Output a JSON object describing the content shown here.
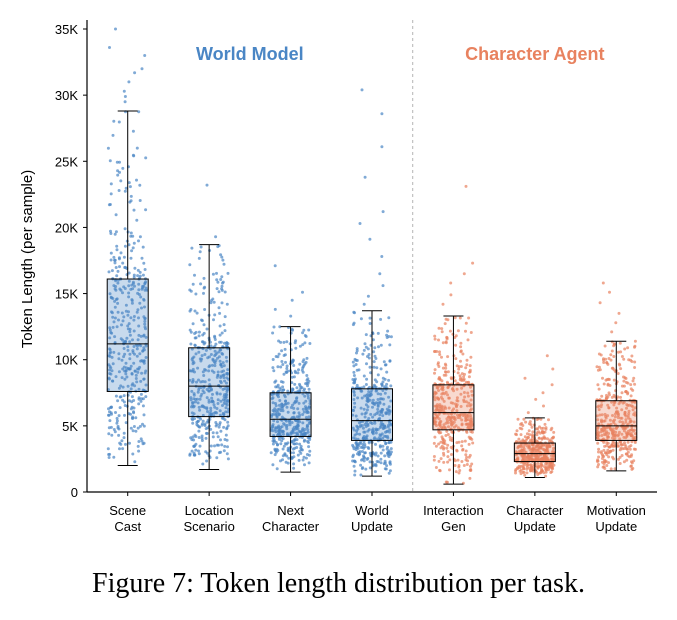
{
  "caption": "Figure 7: Token length distribution per task.",
  "chart_data": {
    "type": "box",
    "ylabel": "Token Length (per sample)",
    "ylim": [
      0,
      35000
    ],
    "yticks": [
      0,
      5000,
      10000,
      15000,
      20000,
      25000,
      30000,
      35000
    ],
    "ytick_labels": [
      "0",
      "5K",
      "10K",
      "15K",
      "20K",
      "25K",
      "30K",
      "35K"
    ],
    "groups": [
      {
        "name": "World Model",
        "color": "#4a86c5",
        "categories": [
          0,
          1,
          2,
          3
        ]
      },
      {
        "name": "Character Agent",
        "color": "#e8825f",
        "categories": [
          4,
          5,
          6
        ]
      }
    ],
    "categories": [
      {
        "label": [
          "Scene",
          "Cast"
        ],
        "group": 0,
        "whisker_low": 2000,
        "q1": 7600,
        "median": 11200,
        "q3": 16100,
        "whisker_high": 28800,
        "outliers": [
          35000,
          33600,
          33000,
          32000,
          31700,
          31000,
          30300,
          29900,
          29500
        ]
      },
      {
        "label": [
          "Location",
          "Scenario"
        ],
        "group": 0,
        "whisker_low": 1700,
        "q1": 5700,
        "median": 8000,
        "q3": 10900,
        "whisker_high": 18700,
        "outliers": [
          23200,
          19300
        ]
      },
      {
        "label": [
          "Next",
          "Character"
        ],
        "group": 0,
        "whisker_low": 1500,
        "q1": 4200,
        "median": 5500,
        "q3": 7500,
        "whisker_high": 12500,
        "outliers": [
          17100,
          15100,
          14500,
          13800,
          13300
        ]
      },
      {
        "label": [
          "World",
          "Update"
        ],
        "group": 0,
        "whisker_low": 1200,
        "q1": 3900,
        "median": 5400,
        "q3": 7800,
        "whisker_high": 13700,
        "outliers": [
          30400,
          28600,
          26100,
          23800,
          21200,
          20300,
          19100,
          17800,
          16500,
          15600,
          14800,
          14200
        ]
      },
      {
        "label": [
          "Interaction",
          "Gen"
        ],
        "group": 1,
        "whisker_low": 600,
        "q1": 4700,
        "median": 6000,
        "q3": 8100,
        "whisker_high": 13300,
        "outliers": [
          23100,
          17300,
          16500,
          15800,
          14900,
          14200
        ]
      },
      {
        "label": [
          "Character",
          "Update"
        ],
        "group": 1,
        "whisker_low": 1100,
        "q1": 2300,
        "median": 2900,
        "q3": 3700,
        "whisker_high": 5600,
        "outliers": [
          10300,
          9300,
          8600,
          8100,
          7500,
          7000,
          6500,
          6000
        ]
      },
      {
        "label": [
          "Motivation",
          "Update"
        ],
        "group": 1,
        "whisker_low": 1600,
        "q1": 3900,
        "median": 5000,
        "q3": 6900,
        "whisker_high": 11400,
        "outliers": [
          15800,
          15100,
          14300,
          13500,
          12800,
          12100
        ]
      }
    ],
    "group_divider_between": [
      3,
      4
    ]
  }
}
